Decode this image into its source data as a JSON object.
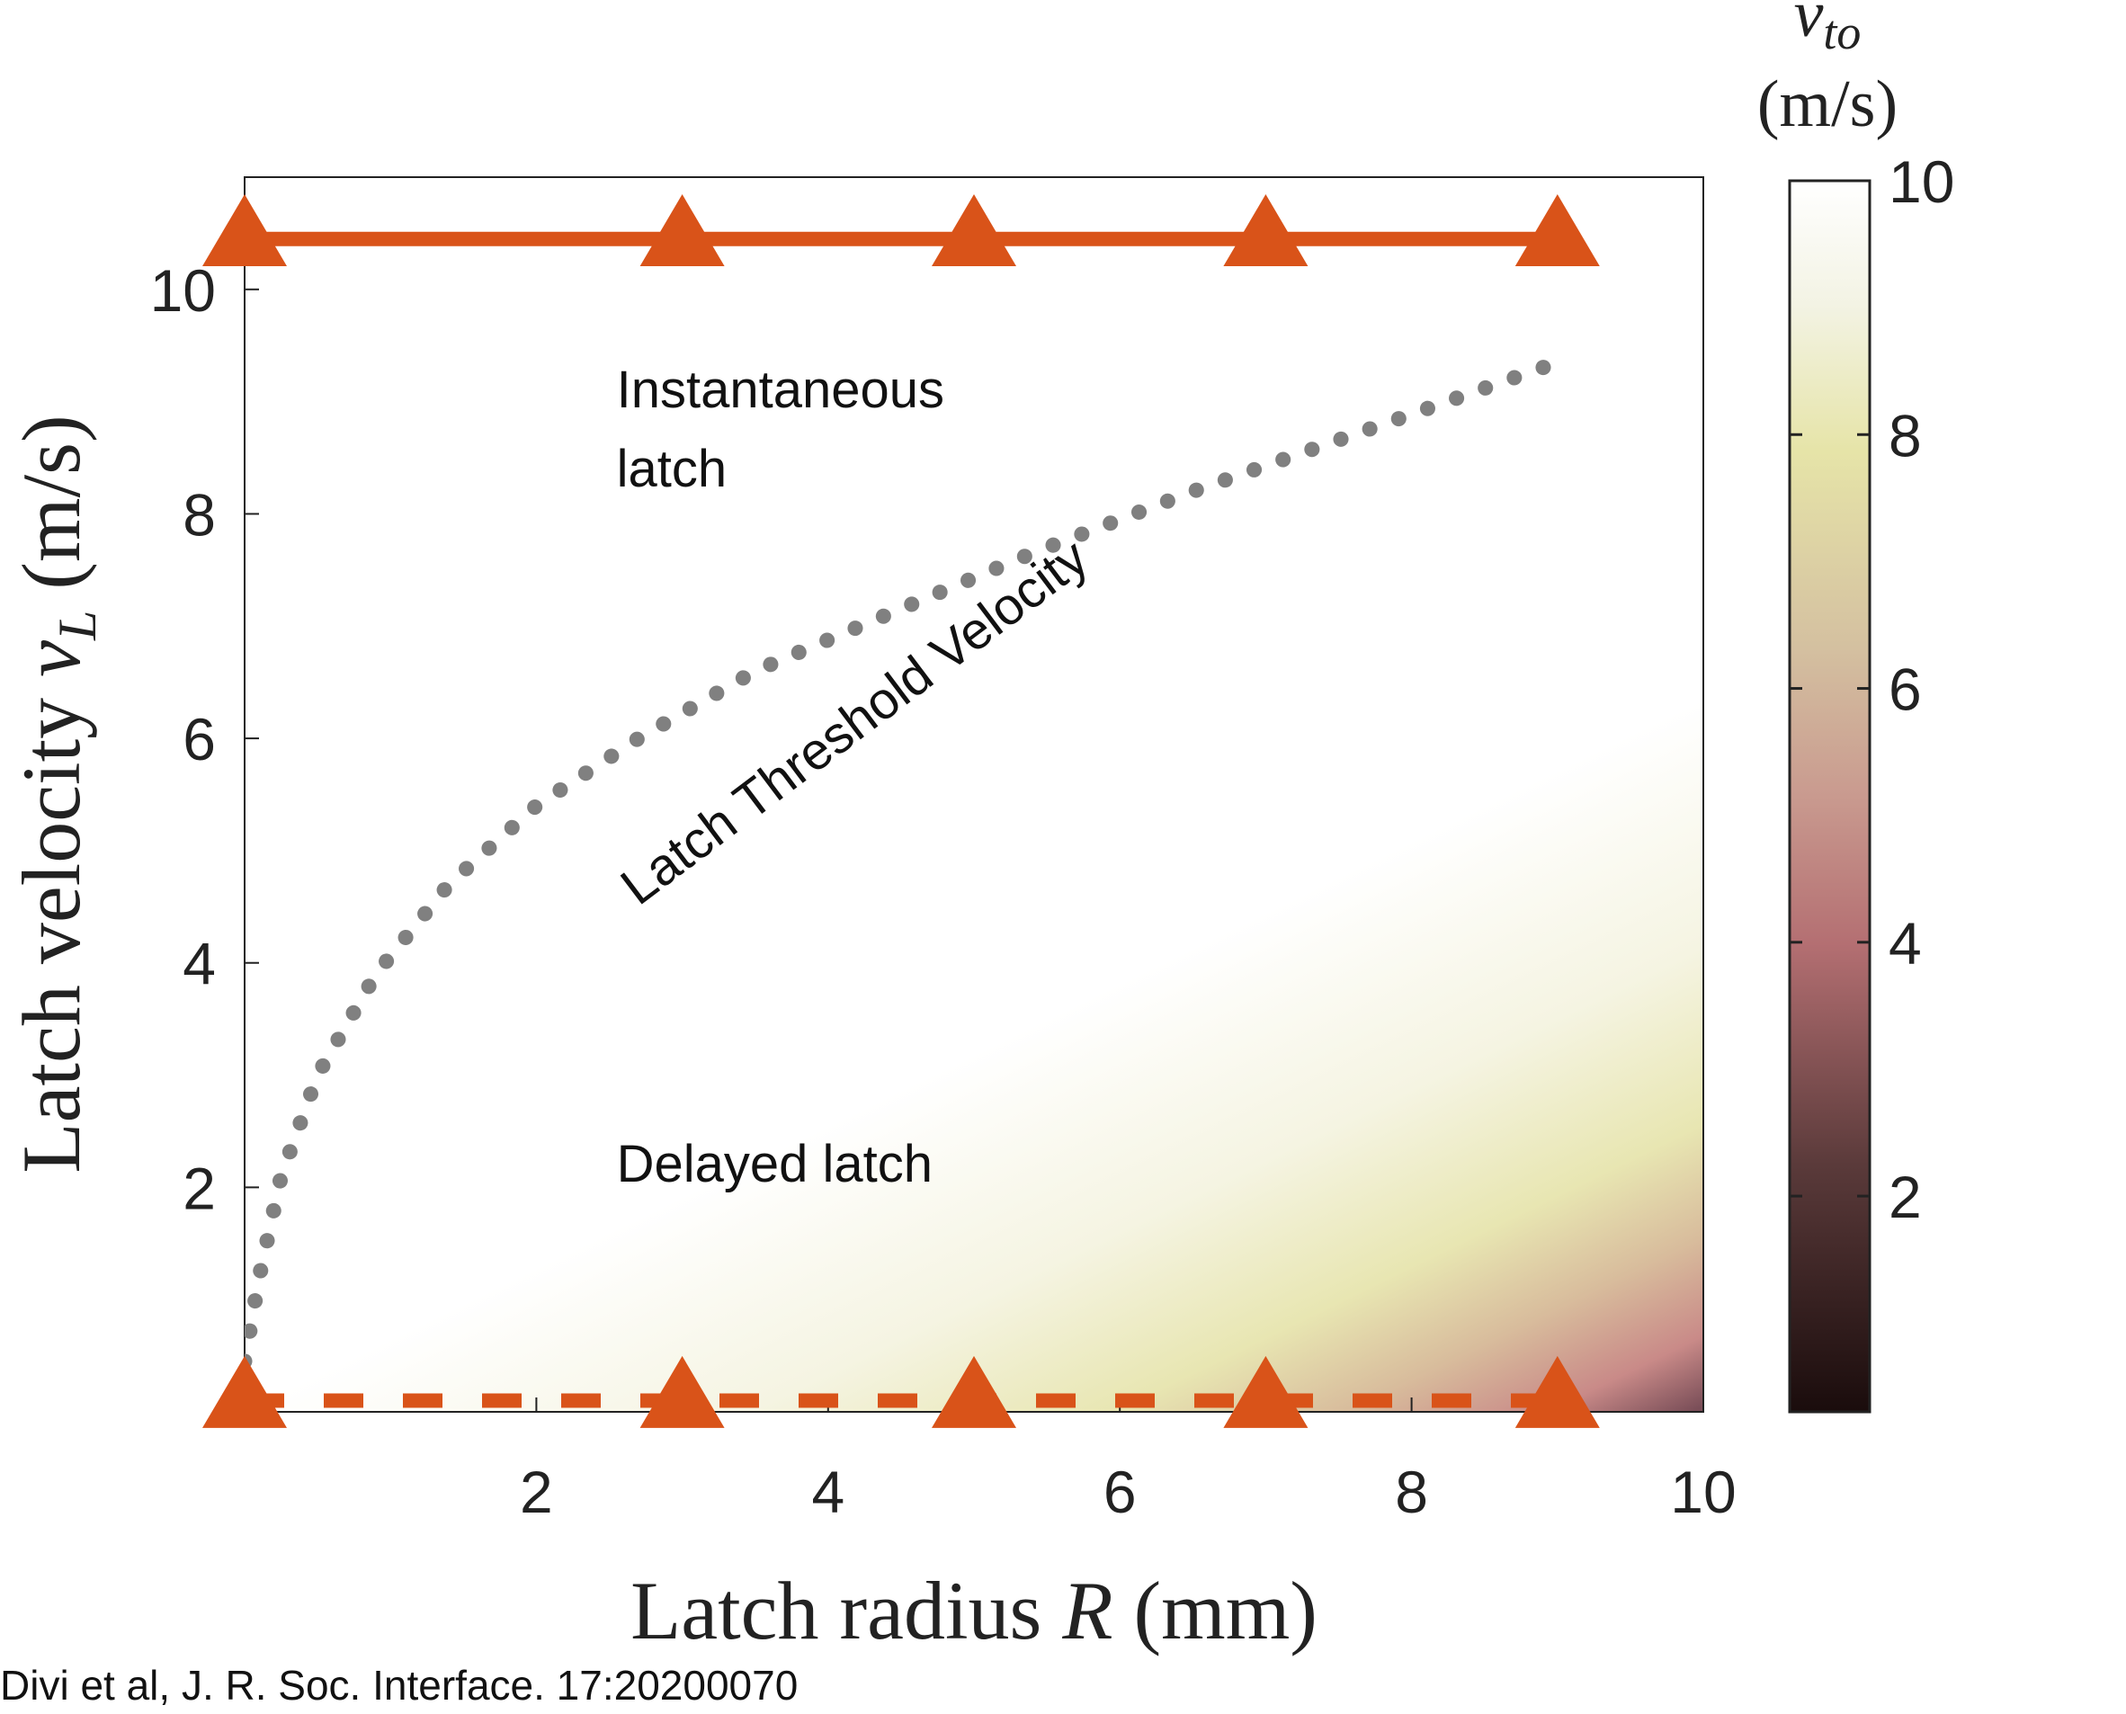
{
  "chart_data": {
    "type": "heatmap",
    "xlabel": "Latch radius R (mm)",
    "ylabel": "Latch velocity v_L (m/s)",
    "xlabel_parts": {
      "prefix": "Latch radius ",
      "var": "R",
      "unit": " (mm)"
    },
    "ylabel_parts": {
      "prefix": "Latch velocity ",
      "var": "v",
      "sub": "L",
      "unit": " (m/s)"
    },
    "xlim": [
      0,
      10
    ],
    "ylim": [
      0,
      11
    ],
    "xticks": [
      2,
      4,
      6,
      8,
      10
    ],
    "xtick_labels": [
      "2",
      "4",
      "6",
      "8",
      "10"
    ],
    "yticks": [
      2,
      4,
      6,
      8,
      10
    ],
    "ytick_labels": [
      "2",
      "4",
      "6",
      "8",
      "10"
    ],
    "colorbar": {
      "title_var": "v",
      "title_sub": "to",
      "title_unit": "(m/s)",
      "range": [
        0.3,
        10
      ],
      "ticks": [
        2,
        4,
        6,
        8,
        10
      ],
      "tick_labels": [
        "2",
        "4",
        "6",
        "8",
        "10"
      ],
      "colormap": [
        "#1a0c0c",
        "#5a3a3a",
        "#b46f72",
        "#c98a88",
        "#d4b99a",
        "#e6e4a8",
        "#f3f3e4",
        "#ffffff"
      ]
    },
    "series": [
      {
        "style": "solid",
        "color": "#d95319",
        "marker": "triangle",
        "x": [
          0,
          3,
          5,
          7,
          9
        ],
        "y": [
          10.45,
          10.45,
          10.45,
          10.45,
          10.45
        ]
      },
      {
        "style": "dashed",
        "color": "#d95319",
        "marker": "triangle",
        "x": [
          0,
          3,
          5,
          7,
          9
        ],
        "y": [
          0.1,
          0.1,
          0.1,
          0.1,
          0.1
        ]
      },
      {
        "style": "dotted",
        "color": "#808080",
        "x": [
          0,
          0.1,
          0.25,
          0.5,
          0.9,
          1.4,
          2.0,
          2.7,
          3.5,
          4.4,
          5.4,
          6.5,
          7.7,
          9.0
        ],
        "y": [
          0.45,
          1.2,
          2.1,
          3.0,
          3.9,
          4.7,
          5.4,
          6.0,
          6.6,
          7.1,
          7.65,
          8.2,
          8.75,
          9.35
        ]
      }
    ],
    "annotations": [
      {
        "text_lines": [
          "Instantaneous",
          "latch"
        ],
        "x": 2.55,
        "y": 8.95
      },
      {
        "text_lines": [
          "Delayed latch"
        ],
        "x": 2.55,
        "y": 2.05
      },
      {
        "text_lines": [
          "Latch Threshold Velocity"
        ],
        "x": 2.7,
        "y": 4.5,
        "rotation": -37
      }
    ]
  },
  "citation": "Divi et al, J. R. Soc. Interface. 17:20200070"
}
